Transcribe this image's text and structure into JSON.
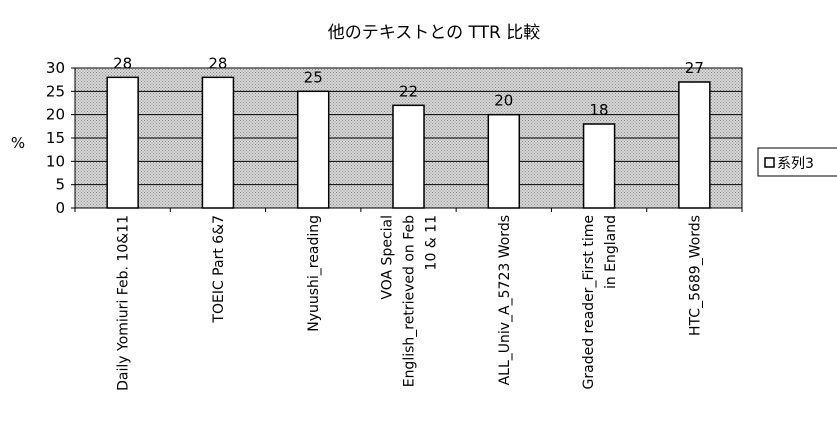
{
  "chart_data": {
    "type": "bar",
    "title": "他のテキストとの TTR 比較",
    "ylabel": "%",
    "xlabel": "",
    "ylim": [
      0,
      30
    ],
    "yticks": [
      0,
      5,
      10,
      15,
      20,
      25,
      30
    ],
    "grid": true,
    "legend_position": "right",
    "categories": [
      [
        "Daily Yomiuri Feb. 10&11"
      ],
      [
        "TOEIC Part 6&7"
      ],
      [
        "Nyuushi_reading"
      ],
      [
        "VOA Special",
        "English_retrieved on Feb",
        "10 & 11"
      ],
      [
        "ALL_Univ_A_5723 Words"
      ],
      [
        "Graded reader_First time",
        "in England"
      ],
      [
        "HTC_5689_Words"
      ]
    ],
    "series": [
      {
        "name": "系列3",
        "values": [
          28,
          28,
          25,
          22,
          20,
          18,
          27
        ]
      }
    ],
    "colors": {
      "plot_background": "#c8c8c8",
      "bar_fill": "#ffffff",
      "bar_stroke": "#000000"
    }
  }
}
